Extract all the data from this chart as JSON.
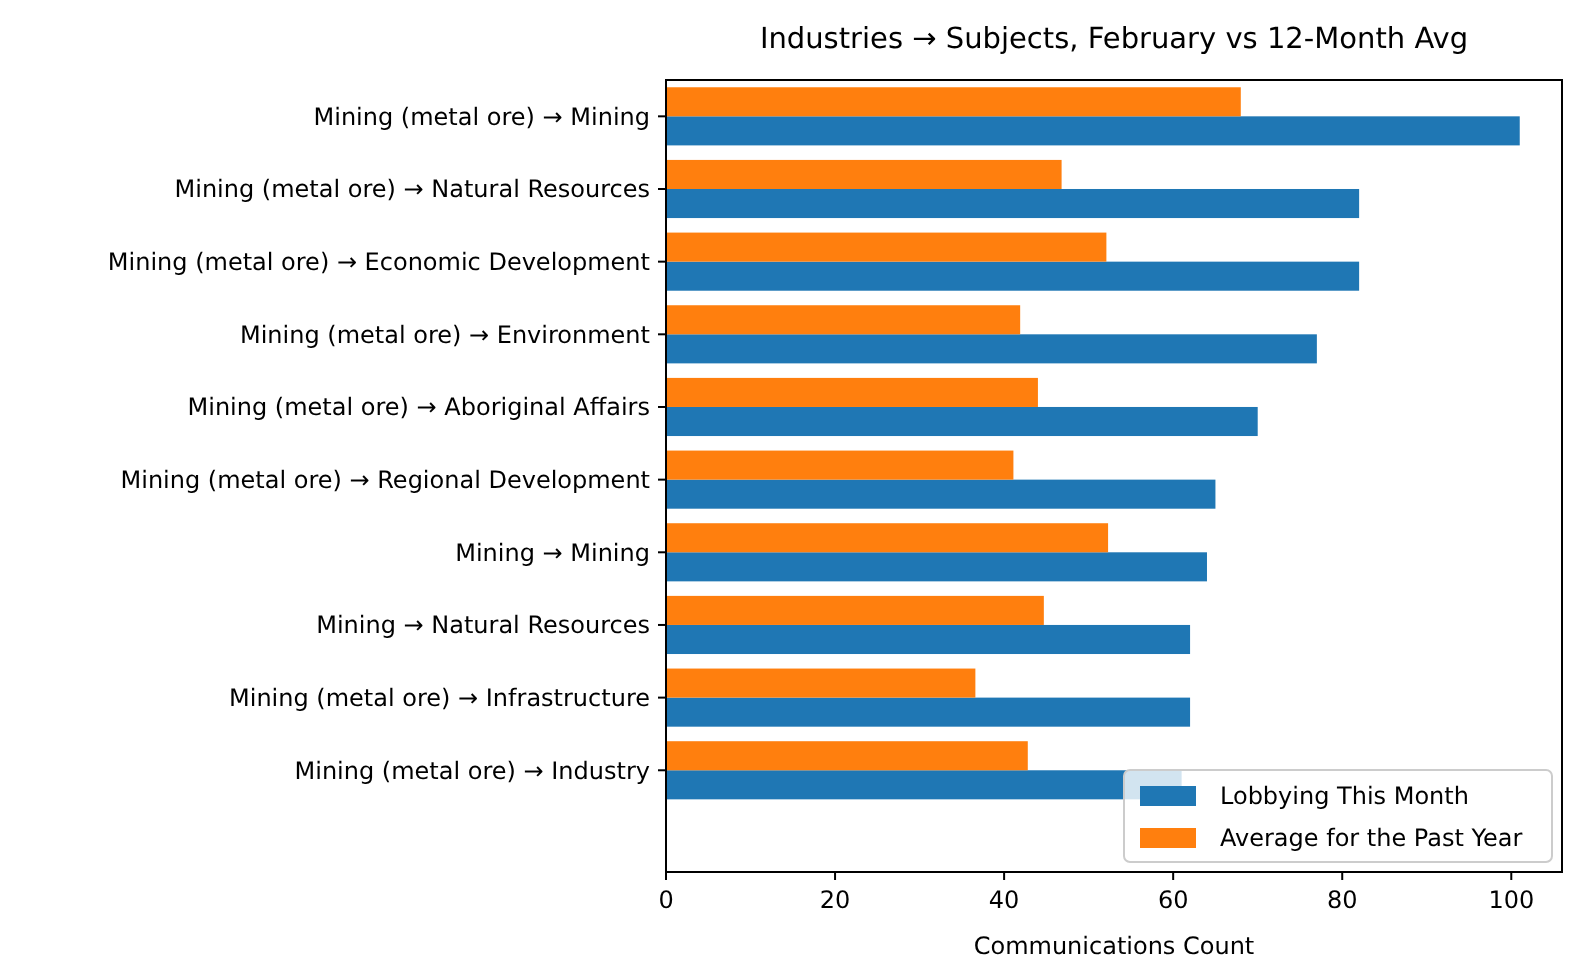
{
  "chart_data": {
    "type": "bar",
    "orientation": "horizontal",
    "title": "Industries → Subjects, February vs 12-Month Avg",
    "xlabel": "Communications Count",
    "categories": [
      "Mining (metal ore) → Mining",
      "Mining (metal ore) → Natural Resources",
      "Mining (metal ore) → Economic Development",
      "Mining (metal ore) → Environment",
      "Mining (metal ore) → Aboriginal Affairs",
      "Mining (metal ore) → Regional Development",
      "Mining → Mining",
      "Mining → Natural Resources",
      "Mining (metal ore) → Infrastructure",
      "Mining (metal ore) → Industry"
    ],
    "series": [
      {
        "name": "Lobbying This Month",
        "color": "#1f77b4",
        "values": [
          101,
          82,
          82,
          77,
          70,
          65,
          64,
          62,
          62,
          61
        ]
      },
      {
        "name": "Average for the Past Year",
        "color": "#ff7f0e",
        "values": [
          68.0,
          46.8,
          52.1,
          41.9,
          44.0,
          41.1,
          52.3,
          44.7,
          36.6,
          42.8
        ]
      }
    ],
    "xlim": [
      0,
      106
    ],
    "xticks": [
      0,
      20,
      40,
      60,
      80,
      100
    ],
    "legend": "bottom right",
    "grid": false
  }
}
